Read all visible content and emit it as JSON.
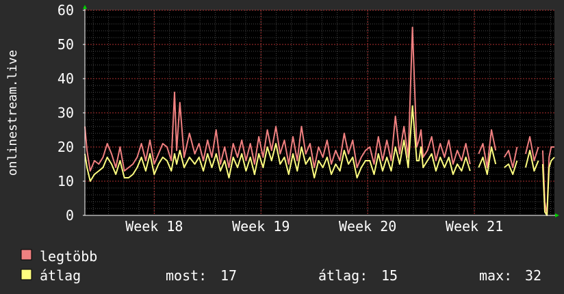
{
  "chart_data": {
    "type": "line",
    "ylabel": "onlinestream.live",
    "ylim": [
      0,
      60
    ],
    "yticks": [
      0,
      10,
      20,
      30,
      40,
      50,
      60
    ],
    "xlim": [
      17.35,
      21.75
    ],
    "xticks": [
      {
        "label": "Week 18",
        "value": 18
      },
      {
        "label": "Week 19",
        "value": 19
      },
      {
        "label": "Week 20",
        "value": 20
      },
      {
        "label": "Week 21",
        "value": 21
      }
    ],
    "grid": true,
    "legend": "bottom-left",
    "x": [
      17.35,
      17.37,
      17.4,
      17.44,
      17.48,
      17.52,
      17.56,
      17.6,
      17.64,
      17.68,
      17.72,
      17.76,
      17.8,
      17.84,
      17.88,
      17.92,
      17.96,
      18.0,
      18.04,
      18.08,
      18.12,
      18.16,
      18.19,
      18.21,
      18.24,
      18.28,
      18.33,
      18.38,
      18.42,
      18.46,
      18.5,
      18.54,
      18.58,
      18.62,
      18.66,
      18.7,
      18.74,
      18.78,
      18.82,
      18.86,
      18.9,
      18.94,
      18.98,
      19.02,
      19.06,
      19.1,
      19.14,
      19.18,
      19.22,
      19.26,
      19.3,
      19.34,
      19.38,
      19.42,
      19.46,
      19.5,
      19.54,
      19.58,
      19.62,
      19.66,
      19.7,
      19.74,
      19.78,
      19.82,
      19.86,
      19.9,
      19.94,
      19.98,
      20.02,
      20.06,
      20.1,
      20.14,
      20.18,
      20.22,
      20.26,
      20.3,
      20.34,
      20.38,
      20.42,
      20.46,
      20.48,
      20.5,
      20.52,
      20.56,
      20.6,
      20.64,
      20.68,
      20.72,
      20.76,
      20.8,
      20.84,
      20.88,
      20.92,
      20.96,
      21.0,
      21.04,
      21.08,
      21.12,
      21.16,
      21.2,
      21.24,
      21.28,
      21.32,
      21.36,
      21.4,
      21.44,
      21.48,
      21.52,
      21.56,
      21.6,
      21.62,
      21.64,
      21.66,
      21.68,
      21.7,
      21.72,
      21.75
    ],
    "series": [
      {
        "name": "legtöbb",
        "color": "#f08080",
        "values": [
          26,
          19,
          13,
          16,
          15,
          17,
          21,
          18,
          14,
          20,
          13,
          14,
          15,
          17,
          21,
          16,
          22,
          15,
          18,
          21,
          20,
          16,
          36,
          19,
          33,
          17,
          24,
          18,
          21,
          16,
          22,
          17,
          25,
          15,
          20,
          14,
          21,
          17,
          22,
          16,
          21,
          15,
          23,
          17,
          25,
          19,
          26,
          18,
          22,
          15,
          23,
          16,
          26,
          18,
          21,
          14,
          20,
          17,
          22,
          15,
          19,
          16,
          24,
          18,
          22,
          14,
          17,
          19,
          20,
          15,
          23,
          16,
          22,
          16,
          29,
          18,
          26,
          17,
          55,
          20,
          22,
          25,
          17,
          19,
          23,
          16,
          21,
          17,
          22,
          15,
          19,
          16,
          21,
          15,
          null,
          18,
          21,
          14,
          25,
          19,
          null,
          17,
          19,
          14,
          20,
          null,
          18,
          23,
          16,
          20,
          null,
          19,
          4,
          0,
          17,
          20,
          20
        ]
      },
      {
        "name": "átlag",
        "color": "#ffff80",
        "values": [
          18,
          14,
          10,
          12,
          13,
          14,
          17,
          15,
          12,
          16,
          11,
          11,
          12,
          14,
          17,
          13,
          18,
          12,
          15,
          17,
          16,
          13,
          18,
          15,
          19,
          14,
          17,
          15,
          17,
          13,
          18,
          14,
          18,
          13,
          16,
          11,
          17,
          14,
          18,
          13,
          17,
          12,
          18,
          14,
          20,
          16,
          21,
          15,
          17,
          12,
          18,
          13,
          20,
          15,
          17,
          11,
          16,
          14,
          17,
          12,
          15,
          13,
          19,
          15,
          17,
          11,
          14,
          16,
          16,
          12,
          18,
          13,
          17,
          13,
          20,
          15,
          22,
          14,
          32,
          16,
          16,
          20,
          14,
          16,
          18,
          13,
          17,
          14,
          17,
          12,
          15,
          13,
          17,
          13,
          null,
          14,
          17,
          12,
          20,
          15,
          null,
          14,
          15,
          12,
          16,
          null,
          14,
          19,
          13,
          16,
          null,
          15,
          1,
          0,
          14,
          16,
          17
        ]
      }
    ]
  },
  "legend": {
    "items": [
      {
        "label": "legtöbb",
        "color": "#f08080"
      },
      {
        "label": "átlag",
        "color": "#ffff80"
      }
    ],
    "stats": [
      {
        "label": "most:",
        "value": "17"
      },
      {
        "label": "átlag:",
        "value": "15"
      },
      {
        "label": "max:",
        "value": "32"
      }
    ]
  }
}
